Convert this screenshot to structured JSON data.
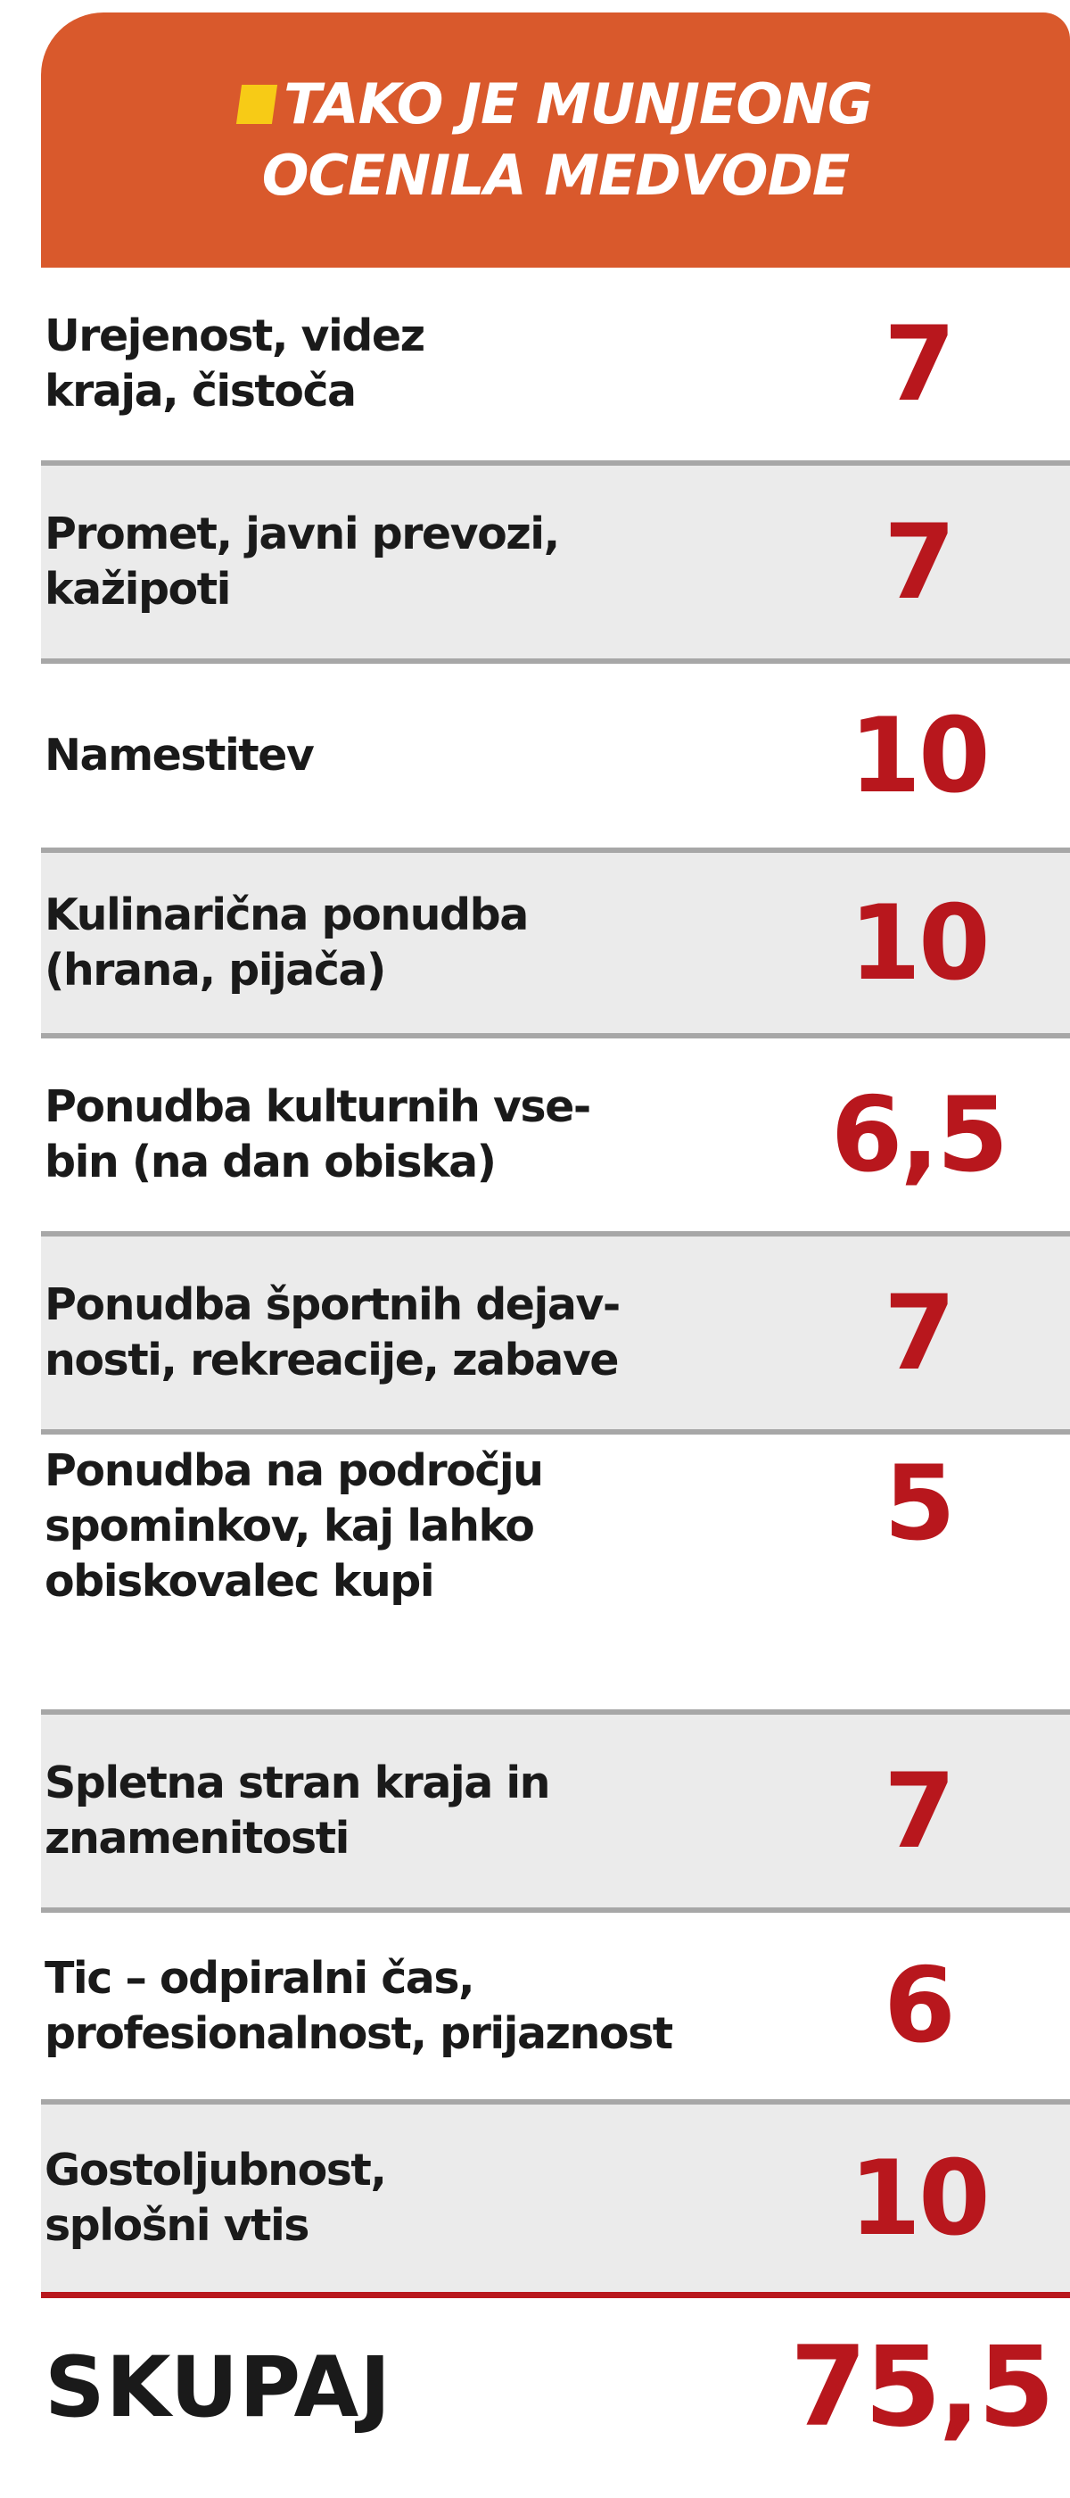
{
  "header": {
    "line1": "TAKO JE MUNJEONG",
    "line2": "OCENILA MEDVODE",
    "bg_color": "#d9592c",
    "marker_color": "#f7cb16"
  },
  "rows": [
    {
      "lines": [
        "Urejenost, videz",
        "kraja, čistoča"
      ],
      "score": "7"
    },
    {
      "lines": [
        "Promet, javni prevozi,",
        "kažipoti"
      ],
      "score": "7"
    },
    {
      "lines": [
        "Namestitev"
      ],
      "score": "10"
    },
    {
      "lines": [
        "Kulinarična ponudba",
        "(hrana, pijača)"
      ],
      "score": "10"
    },
    {
      "lines": [
        "Ponudba kulturnih vse-",
        "bin (na dan obiska)"
      ],
      "score": "6,5"
    },
    {
      "lines": [
        "Ponudba športnih dejav-",
        "nosti, rekreacije, zabave"
      ],
      "score": "7"
    },
    {
      "lines": [
        "Ponudba na področju",
        "spominkov, kaj lahko",
        "obiskovalec kupi"
      ],
      "score": "5"
    },
    {
      "lines": [
        "Spletna stran kraja in",
        "znamenitosti"
      ],
      "score": "7"
    },
    {
      "lines": [
        "Tic – odpiralni čas,",
        "profesionalnost, prijaznost"
      ],
      "score": "6"
    },
    {
      "lines": [
        "Gostoljubnost,",
        "splošni vtis"
      ],
      "score": "10"
    }
  ],
  "total": {
    "label": "SKUPAJ",
    "score": "75,5"
  },
  "colors": {
    "score": "#b8171d",
    "row_shaded": "#ebebeb",
    "divider": "#a7a7a7",
    "text": "#1a1a1a"
  }
}
